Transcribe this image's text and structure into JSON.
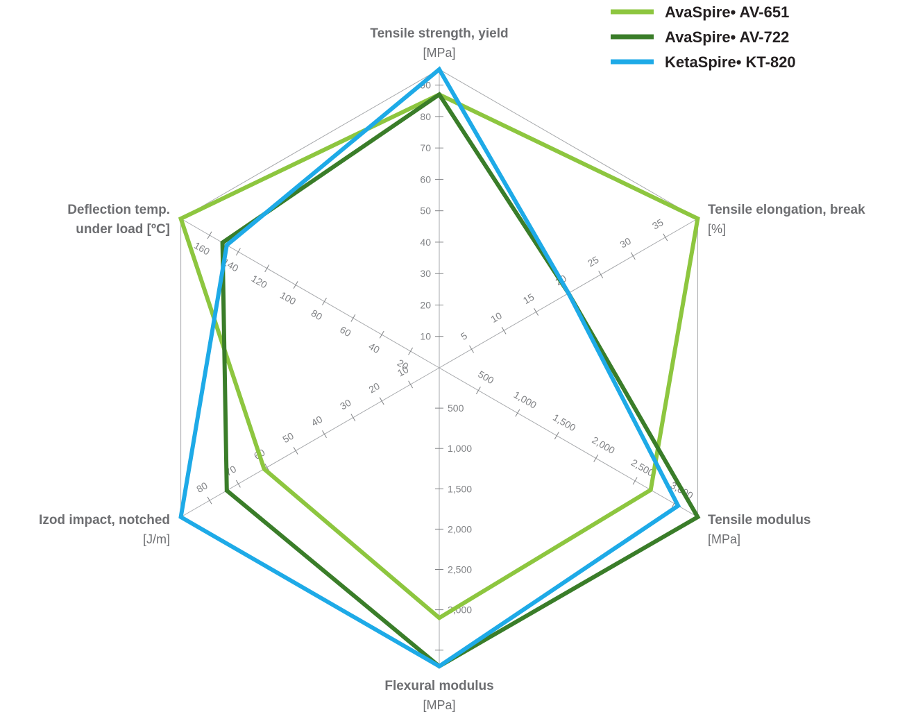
{
  "chart_data": {
    "type": "radar",
    "legend_position": "top-right",
    "axes": [
      {
        "key": "tensile_strength",
        "name_lines": [
          "Tensile strength, yield"
        ],
        "unit": "[MPa]",
        "max": 95,
        "ticks": [
          10,
          20,
          30,
          40,
          50,
          60,
          70,
          80,
          90
        ],
        "tick_labels": [
          "10",
          "20",
          "30",
          "40",
          "50",
          "60",
          "70",
          "80",
          "90"
        ],
        "tick_side": "right"
      },
      {
        "key": "tensile_elongation",
        "name_lines": [
          "Tensile elongation, break"
        ],
        "unit": "[%]",
        "max": 40,
        "ticks": [
          5,
          10,
          15,
          20,
          25,
          30,
          35
        ],
        "tick_labels": [
          "5",
          "10",
          "15",
          "20",
          "25",
          "30",
          "35"
        ],
        "tick_side": "left"
      },
      {
        "key": "tensile_modulus",
        "name_lines": [
          "Tensile modulus"
        ],
        "unit": "[MPa]",
        "max": 3300,
        "ticks": [
          500,
          1000,
          1500,
          2000,
          2500,
          3000
        ],
        "tick_labels": [
          "500",
          "1,000",
          "1,500",
          "2,000",
          "2,500",
          "3,000"
        ],
        "tick_side": "left"
      },
      {
        "key": "flexural_modulus",
        "name_lines": [
          "Flexural modulus"
        ],
        "unit": "[MPa]",
        "max": 3700,
        "ticks": [
          500,
          1000,
          1500,
          2000,
          2500,
          3000,
          3500
        ],
        "tick_labels": [
          "500",
          "1,000",
          "1,500",
          "2,000",
          "2,500",
          "3,000",
          ""
        ],
        "tick_side": "right"
      },
      {
        "key": "izod_impact",
        "name_lines": [
          "Izod impact, notched"
        ],
        "unit": "[J/m]",
        "max": 90,
        "ticks": [
          10,
          20,
          30,
          40,
          50,
          60,
          70,
          80
        ],
        "tick_labels": [
          "10",
          "20",
          "30",
          "40",
          "50",
          "60",
          "70",
          "80"
        ],
        "tick_side": "right"
      },
      {
        "key": "deflection_temp",
        "name_lines": [
          "Deflection temp.",
          "under load [ºC]"
        ],
        "unit": "",
        "max": 180,
        "ticks": [
          20,
          40,
          60,
          80,
          100,
          120,
          140,
          160
        ],
        "tick_labels": [
          "20",
          "40",
          "60",
          "80",
          "100",
          "120",
          "140",
          "160"
        ],
        "tick_side": "left"
      }
    ],
    "series": [
      {
        "name": "AvaSpire• AV-651",
        "color": "#8dc63f",
        "values": [
          87,
          40,
          2700,
          3100,
          61,
          180
        ]
      },
      {
        "name": "AvaSpire• AV-722",
        "color": "#3a7d29",
        "values": [
          87,
          20,
          3300,
          3700,
          74,
          151
        ]
      },
      {
        "name": "KetaSpire• KT-820",
        "color": "#1eaae7",
        "values": [
          95,
          20,
          3050,
          3700,
          90,
          148
        ]
      }
    ]
  }
}
